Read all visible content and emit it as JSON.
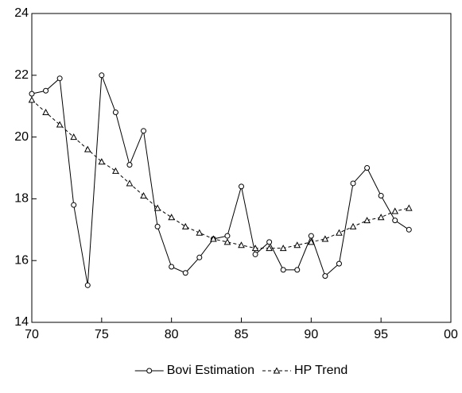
{
  "chart_data": {
    "type": "line",
    "x": [
      70,
      71,
      72,
      73,
      74,
      75,
      76,
      77,
      78,
      79,
      80,
      81,
      82,
      83,
      84,
      85,
      86,
      87,
      88,
      89,
      90,
      91,
      92,
      93,
      94,
      95,
      96,
      97
    ],
    "series": [
      {
        "name": "Bovi Estimation",
        "color": "#000000",
        "marker": "circle",
        "dashed": false,
        "values": [
          21.4,
          21.5,
          21.9,
          17.8,
          15.2,
          22.0,
          20.8,
          19.1,
          20.2,
          17.1,
          15.8,
          15.6,
          16.1,
          16.7,
          16.8,
          18.4,
          16.2,
          16.6,
          15.7,
          15.7,
          16.8,
          15.5,
          15.9,
          18.5,
          19.0,
          18.1,
          17.3,
          17.0
        ]
      },
      {
        "name": "HP Trend",
        "color": "#000000",
        "marker": "triangle",
        "dashed": true,
        "values": [
          21.2,
          20.8,
          20.4,
          20.0,
          19.6,
          19.2,
          18.9,
          18.5,
          18.1,
          17.7,
          17.4,
          17.1,
          16.9,
          16.7,
          16.6,
          16.5,
          16.4,
          16.4,
          16.4,
          16.5,
          16.6,
          16.7,
          16.9,
          17.1,
          17.3,
          17.4,
          17.6,
          17.7
        ]
      }
    ],
    "xlim": [
      70,
      100
    ],
    "xticks": [
      70,
      75,
      80,
      85,
      90,
      95,
      {
        "value": 100,
        "label": "00"
      }
    ],
    "ylim": [
      14,
      24
    ],
    "yticks": [
      14,
      16,
      18,
      20,
      22,
      24
    ],
    "legend": "bottom"
  }
}
